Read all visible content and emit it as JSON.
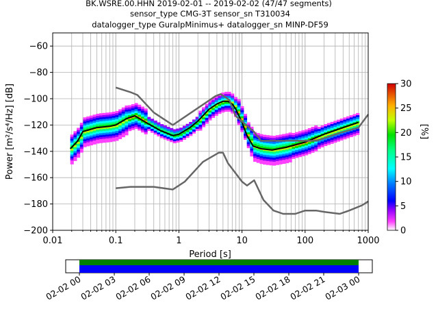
{
  "title_lines": [
    "BK.WSRE.00.HHN   2019-02-01 -- 2019-02-02  (47/47 segments)",
    "sensor_type CMG-3T sensor_sn T310034",
    "datalogger_type GuralpMinimus+ datalogger_sn MINP-DF59"
  ],
  "chart_data": {
    "type": "heatmap",
    "xlabel": "Period [s]",
    "ylabel": "Power [m²/s⁴/Hz] [dB]",
    "x_scale": "log",
    "xlim": [
      0.01,
      1000
    ],
    "ylim": [
      -200,
      -50
    ],
    "xticks": [
      {
        "value": 0.01,
        "label": "0.01"
      },
      {
        "value": 0.1,
        "label": "0.1"
      },
      {
        "value": 1,
        "label": "1"
      },
      {
        "value": 10,
        "label": "10"
      },
      {
        "value": 100,
        "label": "100"
      },
      {
        "value": 1000,
        "label": "1000"
      }
    ],
    "yticks": [
      {
        "value": -60,
        "label": "−60"
      },
      {
        "value": -80,
        "label": "−80"
      },
      {
        "value": -100,
        "label": "−100"
      },
      {
        "value": -120,
        "label": "−120"
      },
      {
        "value": -140,
        "label": "−140"
      },
      {
        "value": -160,
        "label": "−160"
      },
      {
        "value": -180,
        "label": "−180"
      },
      {
        "value": -200,
        "label": "−200"
      }
    ],
    "grid": true,
    "colorbar": {
      "label": "[%]",
      "range": [
        0,
        30
      ],
      "ticks": [
        {
          "value": 0,
          "label": "0"
        },
        {
          "value": 5,
          "label": "5"
        },
        {
          "value": 10,
          "label": "10"
        },
        {
          "value": 15,
          "label": "15"
        },
        {
          "value": 20,
          "label": "20"
        },
        {
          "value": 25,
          "label": "25"
        },
        {
          "value": 30,
          "label": "30"
        }
      ]
    },
    "series": [
      {
        "role": "mode",
        "color": "#000000",
        "points": [
          [
            0.019,
            -138
          ],
          [
            0.025,
            -132
          ],
          [
            0.03,
            -125
          ],
          [
            0.05,
            -122
          ],
          [
            0.08,
            -121
          ],
          [
            0.1,
            -120
          ],
          [
            0.15,
            -115
          ],
          [
            0.2,
            -113
          ],
          [
            0.3,
            -118
          ],
          [
            0.5,
            -124
          ],
          [
            0.8,
            -128
          ],
          [
            1,
            -127
          ],
          [
            1.5,
            -122
          ],
          [
            2,
            -117
          ],
          [
            3,
            -108
          ],
          [
            4,
            -104
          ],
          [
            5,
            -102
          ],
          [
            6,
            -102
          ],
          [
            7,
            -104
          ],
          [
            8,
            -108
          ],
          [
            10,
            -118
          ],
          [
            12,
            -128
          ],
          [
            15,
            -136
          ],
          [
            20,
            -138
          ],
          [
            30,
            -139
          ],
          [
            50,
            -137
          ],
          [
            100,
            -133
          ],
          [
            200,
            -127
          ],
          [
            400,
            -122
          ],
          [
            700,
            -118
          ]
        ]
      },
      {
        "role": "new-high-noise-model",
        "color": "#666666",
        "points": [
          [
            0.1,
            -91.5
          ],
          [
            0.17,
            -95
          ],
          [
            0.22,
            -97.2
          ],
          [
            0.4,
            -110.5
          ],
          [
            0.8,
            -120
          ],
          [
            3.8,
            -98
          ],
          [
            4.6,
            -96.5
          ],
          [
            6.3,
            -101
          ],
          [
            7.9,
            -113
          ],
          [
            15.4,
            -125
          ],
          [
            20,
            -132
          ],
          [
            150,
            -132
          ],
          [
            354,
            -126
          ],
          [
            700,
            -122
          ],
          [
            1000,
            -112
          ]
        ]
      },
      {
        "role": "new-low-noise-model",
        "color": "#666666",
        "points": [
          [
            0.1,
            -168
          ],
          [
            0.17,
            -167
          ],
          [
            0.4,
            -167
          ],
          [
            0.8,
            -169
          ],
          [
            1.24,
            -163
          ],
          [
            2.4,
            -148
          ],
          [
            4.3,
            -141
          ],
          [
            5,
            -141
          ],
          [
            6,
            -149
          ],
          [
            10,
            -163
          ],
          [
            12,
            -166
          ],
          [
            15.6,
            -162
          ],
          [
            21.9,
            -177
          ],
          [
            31.6,
            -185
          ],
          [
            45,
            -187.5
          ],
          [
            70,
            -187.5
          ],
          [
            100,
            -185
          ],
          [
            150,
            -185
          ],
          [
            200,
            -186
          ],
          [
            354,
            -187.5
          ],
          [
            500,
            -185
          ],
          [
            800,
            -181
          ],
          [
            1000,
            -178
          ]
        ]
      }
    ],
    "timeline": {
      "tick_labels": [
        "02-02 00",
        "02-02 03",
        "02-02 06",
        "02-02 09",
        "02-02 12",
        "02-02 15",
        "02-02 18",
        "02-02 21",
        "02-03 00"
      ],
      "segment_colors": [
        "#008000",
        "#0000ff"
      ]
    }
  }
}
